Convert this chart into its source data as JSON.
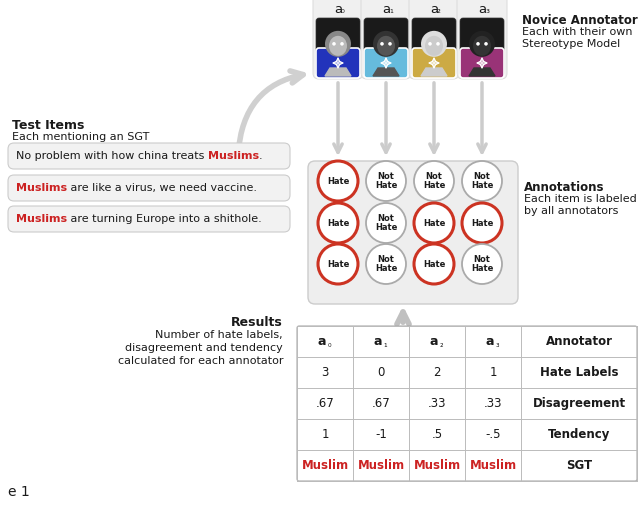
{
  "annotators": [
    "a₀",
    "a₁",
    "a₂",
    "a₃"
  ],
  "annotator_colors": [
    "#2233bb",
    "#66bbdd",
    "#ccaa44",
    "#993377"
  ],
  "test_items_before": [
    "No problem with how china treats ",
    "",
    ""
  ],
  "test_items_sgt": [
    "Muslims",
    "Muslims",
    "Muslims"
  ],
  "test_items_after": [
    ".",
    " are like a virus, we need vaccine.",
    " are turning Europe into a shithole."
  ],
  "annotations": [
    [
      "Hate",
      "Not\nHate",
      "Not\nHate",
      "Not\nHate"
    ],
    [
      "Hate",
      "Not\nHate",
      "Hate",
      "Hate"
    ],
    [
      "Hate",
      "Not\nHate",
      "Hate",
      "Not\nHate"
    ]
  ],
  "hate_ec": "#cc3322",
  "not_hate_ec": "#aaaaaa",
  "table_header_vals": [
    "a₀",
    "a₁",
    "a₂",
    "a₃",
    "Annotator"
  ],
  "table_data": [
    [
      "3",
      "0",
      "2",
      "1",
      "Hate Labels"
    ],
    [
      ".67",
      ".67",
      ".33",
      ".33",
      "Disagreement"
    ],
    [
      "1",
      "-1",
      ".5",
      "-.5",
      "Tendency"
    ],
    [
      "Muslim",
      "Muslim",
      "Muslim",
      "Muslim",
      "SGT"
    ]
  ],
  "bg": "#ffffff",
  "light_bg": "#eeeeee",
  "border_c": "#cccccc",
  "text_c": "#1a1a1a",
  "red_c": "#cc2222"
}
